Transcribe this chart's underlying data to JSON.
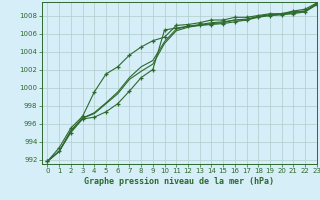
{
  "title": "Graphe pression niveau de la mer (hPa)",
  "background_color": "#d6eef8",
  "grid_color": "#b0cccc",
  "line_color": "#2d6a2d",
  "xlim": [
    -0.5,
    23
  ],
  "ylim": [
    991.5,
    1009.5
  ],
  "yticks": [
    992,
    994,
    996,
    998,
    1000,
    1002,
    1004,
    1006,
    1008
  ],
  "xticks": [
    0,
    1,
    2,
    3,
    4,
    5,
    6,
    7,
    8,
    9,
    10,
    11,
    12,
    13,
    14,
    15,
    16,
    17,
    18,
    19,
    20,
    21,
    22,
    23
  ],
  "series": [
    {
      "y": [
        991.8,
        992.9,
        995.0,
        996.5,
        996.7,
        997.3,
        998.2,
        999.6,
        1001.1,
        1002.0,
        1006.4,
        1006.6,
        1006.8,
        1006.9,
        1007.0,
        1007.1,
        1007.3,
        1007.5,
        1007.8,
        1008.0,
        1008.1,
        1008.2,
        1008.4,
        1009.2
      ],
      "marker": true
    },
    {
      "y": [
        991.8,
        992.9,
        995.2,
        996.6,
        997.1,
        998.2,
        999.3,
        1000.9,
        1001.8,
        1002.6,
        1004.9,
        1006.3,
        1006.7,
        1006.9,
        1007.1,
        1007.2,
        1007.5,
        1007.5,
        1007.9,
        1008.0,
        1008.1,
        1008.3,
        1008.5,
        1009.3
      ],
      "marker": false
    },
    {
      "y": [
        991.8,
        992.9,
        995.2,
        996.6,
        997.2,
        998.3,
        999.5,
        1001.1,
        1002.3,
        1003.0,
        1005.1,
        1006.5,
        1006.8,
        1007.0,
        1007.2,
        1007.3,
        1007.5,
        1007.6,
        1007.9,
        1008.1,
        1008.2,
        1008.4,
        1008.5,
        1009.3
      ],
      "marker": false
    },
    {
      "y": [
        991.8,
        993.3,
        995.5,
        996.8,
        999.5,
        1001.5,
        1002.3,
        1003.6,
        1004.5,
        1005.2,
        1005.6,
        1006.9,
        1007.0,
        1007.2,
        1007.5,
        1007.5,
        1007.8,
        1007.8,
        1008.0,
        1008.2,
        1008.2,
        1008.5,
        1008.7,
        1009.4
      ],
      "marker": true
    }
  ]
}
